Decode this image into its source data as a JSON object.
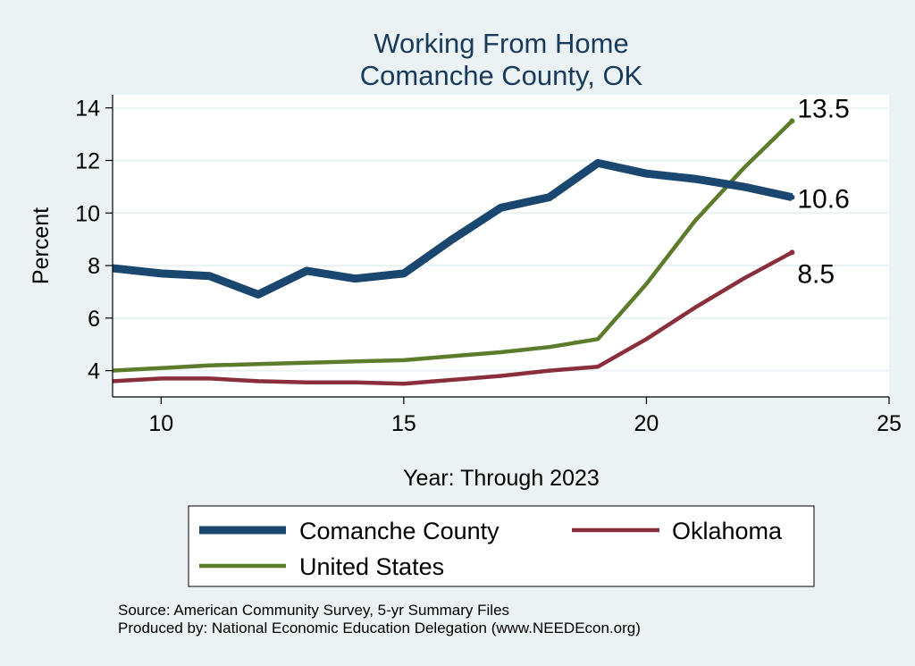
{
  "chart_data": {
    "type": "line",
    "title": "Working From Home",
    "subtitle": "Comanche County, OK",
    "xlabel": "Year: Through 2023",
    "ylabel": "Percent",
    "xlim": [
      9,
      25
    ],
    "ylim": [
      3,
      14.5
    ],
    "xticks": [
      10,
      15,
      20,
      25
    ],
    "yticks": [
      4,
      6,
      8,
      10,
      12,
      14
    ],
    "grid": true,
    "legend_position": "bottom",
    "series": [
      {
        "name": "Comanche County",
        "color": "#1a4770",
        "x": [
          9,
          10,
          11,
          12,
          13,
          14,
          15,
          16,
          17,
          18,
          19,
          20,
          21,
          22,
          23
        ],
        "values": [
          7.9,
          7.7,
          7.6,
          6.9,
          7.8,
          7.5,
          7.7,
          9.0,
          10.2,
          10.6,
          11.9,
          11.5,
          11.3,
          11.0,
          10.6
        ],
        "end_label": "10.6"
      },
      {
        "name": "Oklahoma",
        "color": "#8b2e3c",
        "x": [
          9,
          10,
          11,
          12,
          13,
          14,
          15,
          16,
          17,
          18,
          19,
          20,
          21,
          22,
          23
        ],
        "values": [
          3.6,
          3.7,
          3.7,
          3.6,
          3.55,
          3.55,
          3.5,
          3.65,
          3.8,
          4.0,
          4.15,
          5.2,
          6.4,
          7.5,
          8.5
        ],
        "end_label": "8.5"
      },
      {
        "name": "United States",
        "color": "#5c7c2c",
        "x": [
          9,
          10,
          11,
          12,
          13,
          14,
          15,
          16,
          17,
          18,
          19,
          20,
          21,
          22,
          23
        ],
        "values": [
          4.0,
          4.1,
          4.2,
          4.25,
          4.3,
          4.35,
          4.4,
          4.55,
          4.7,
          4.9,
          5.2,
          7.3,
          9.7,
          11.7,
          13.5
        ],
        "end_label": "13.5"
      }
    ]
  },
  "source_note": "Source: American Community Survey, 5-yr Summary Files",
  "producer_note": "Produced by: National Economic Education Delegation (www.NEEDEcon.org)"
}
